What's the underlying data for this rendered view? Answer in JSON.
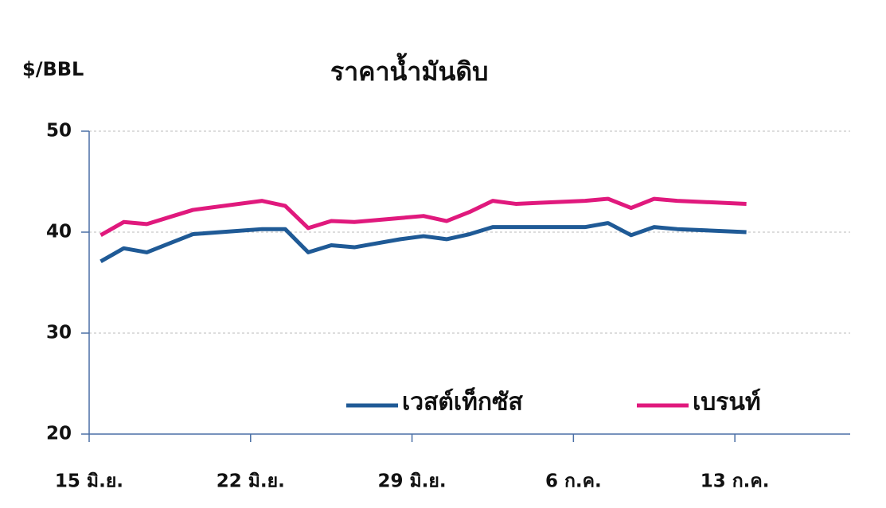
{
  "chart_data": {
    "type": "line",
    "title": "ราคาน้ำมันดิบ",
    "y_label": "$/BBL",
    "x": [
      0,
      1,
      2,
      3,
      4,
      7,
      8,
      9,
      10,
      11,
      12,
      13,
      14,
      15,
      16,
      17,
      18,
      19,
      21,
      22,
      23,
      24,
      25,
      28
    ],
    "series": [
      {
        "name": "เวสต์เท็กซัส",
        "color": "#1f5a96",
        "values": [
          37.1,
          38.4,
          38.0,
          38.9,
          39.8,
          40.3,
          40.3,
          38.0,
          38.7,
          38.5,
          38.9,
          39.3,
          39.6,
          39.3,
          39.8,
          40.5,
          40.5,
          40.5,
          40.5,
          40.9,
          39.7,
          40.5,
          40.3,
          40.0
        ]
      },
      {
        "name": "เบรนท์",
        "color": "#e0197d",
        "values": [
          39.7,
          41.0,
          40.8,
          41.5,
          42.2,
          43.1,
          42.6,
          40.4,
          41.1,
          41.0,
          41.2,
          41.4,
          41.6,
          41.1,
          42.0,
          43.1,
          42.8,
          42.9,
          43.1,
          43.3,
          42.4,
          43.3,
          43.1,
          42.8
        ]
      }
    ],
    "xlim": [
      -0.5,
      32.5
    ],
    "xticks": [
      {
        "value": -0.5,
        "label": "15 มิ.ย."
      },
      {
        "value": 6.5,
        "label": "22 มิ.ย."
      },
      {
        "value": 13.5,
        "label": "29 มิ.ย."
      },
      {
        "value": 20.5,
        "label": "6 ก.ค."
      },
      {
        "value": 27.5,
        "label": "13 ก.ค."
      }
    ],
    "ylim": [
      20,
      50
    ],
    "yticks": [
      20,
      30,
      40,
      50
    ],
    "grid": true
  }
}
